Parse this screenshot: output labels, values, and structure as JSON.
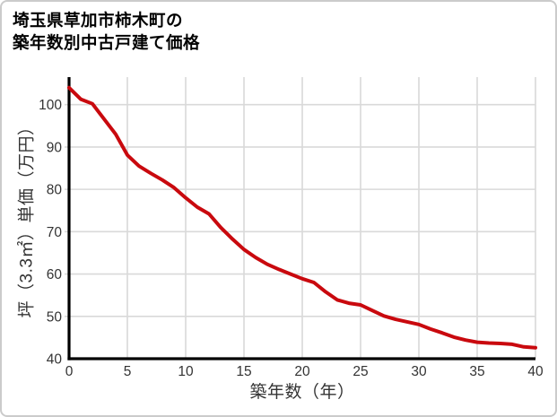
{
  "title": {
    "line1": "埼玉県草加市柿木町の",
    "line2": "築年数別中古戸建て価格"
  },
  "chart_data": {
    "type": "line",
    "title": "埼玉県草加市柿木町の築年数別中古戸建て価格",
    "xlabel": "築年数（年）",
    "ylabel": "坪（3.3㎡）単価（万円）",
    "x": [
      0,
      1,
      2,
      3,
      4,
      5,
      6,
      7,
      8,
      9,
      10,
      11,
      12,
      13,
      14,
      15,
      16,
      17,
      18,
      19,
      20,
      21,
      22,
      23,
      24,
      25,
      26,
      27,
      28,
      29,
      30,
      31,
      32,
      33,
      34,
      35,
      36,
      37,
      38,
      39,
      40
    ],
    "values": [
      104.0,
      101.3,
      100.2,
      96.6,
      93.0,
      88.1,
      85.5,
      83.8,
      82.2,
      80.4,
      78.0,
      75.8,
      74.2,
      71.0,
      68.3,
      65.8,
      63.9,
      62.3,
      61.1,
      60.0,
      58.9,
      58.0,
      55.8,
      53.9,
      53.1,
      52.7,
      51.4,
      50.1,
      49.3,
      48.7,
      48.1,
      47.0,
      46.1,
      45.1,
      44.4,
      43.9,
      43.7,
      43.6,
      43.4,
      42.8,
      42.6
    ],
    "xlim": [
      0,
      40
    ],
    "ylim": [
      40,
      106.5
    ],
    "xticks": [
      0,
      5,
      10,
      15,
      20,
      25,
      30,
      35,
      40
    ],
    "yticks": [
      40,
      50,
      60,
      70,
      80,
      90,
      100
    ],
    "grid": true,
    "legend": false,
    "colors": {
      "line": "#c9090e",
      "grid": "#d9d9d9",
      "axis": "#000000",
      "tick_text": "#333333",
      "title_text": "#000000",
      "frame_border": "#cbcbcb",
      "background": "#ffffff"
    }
  }
}
